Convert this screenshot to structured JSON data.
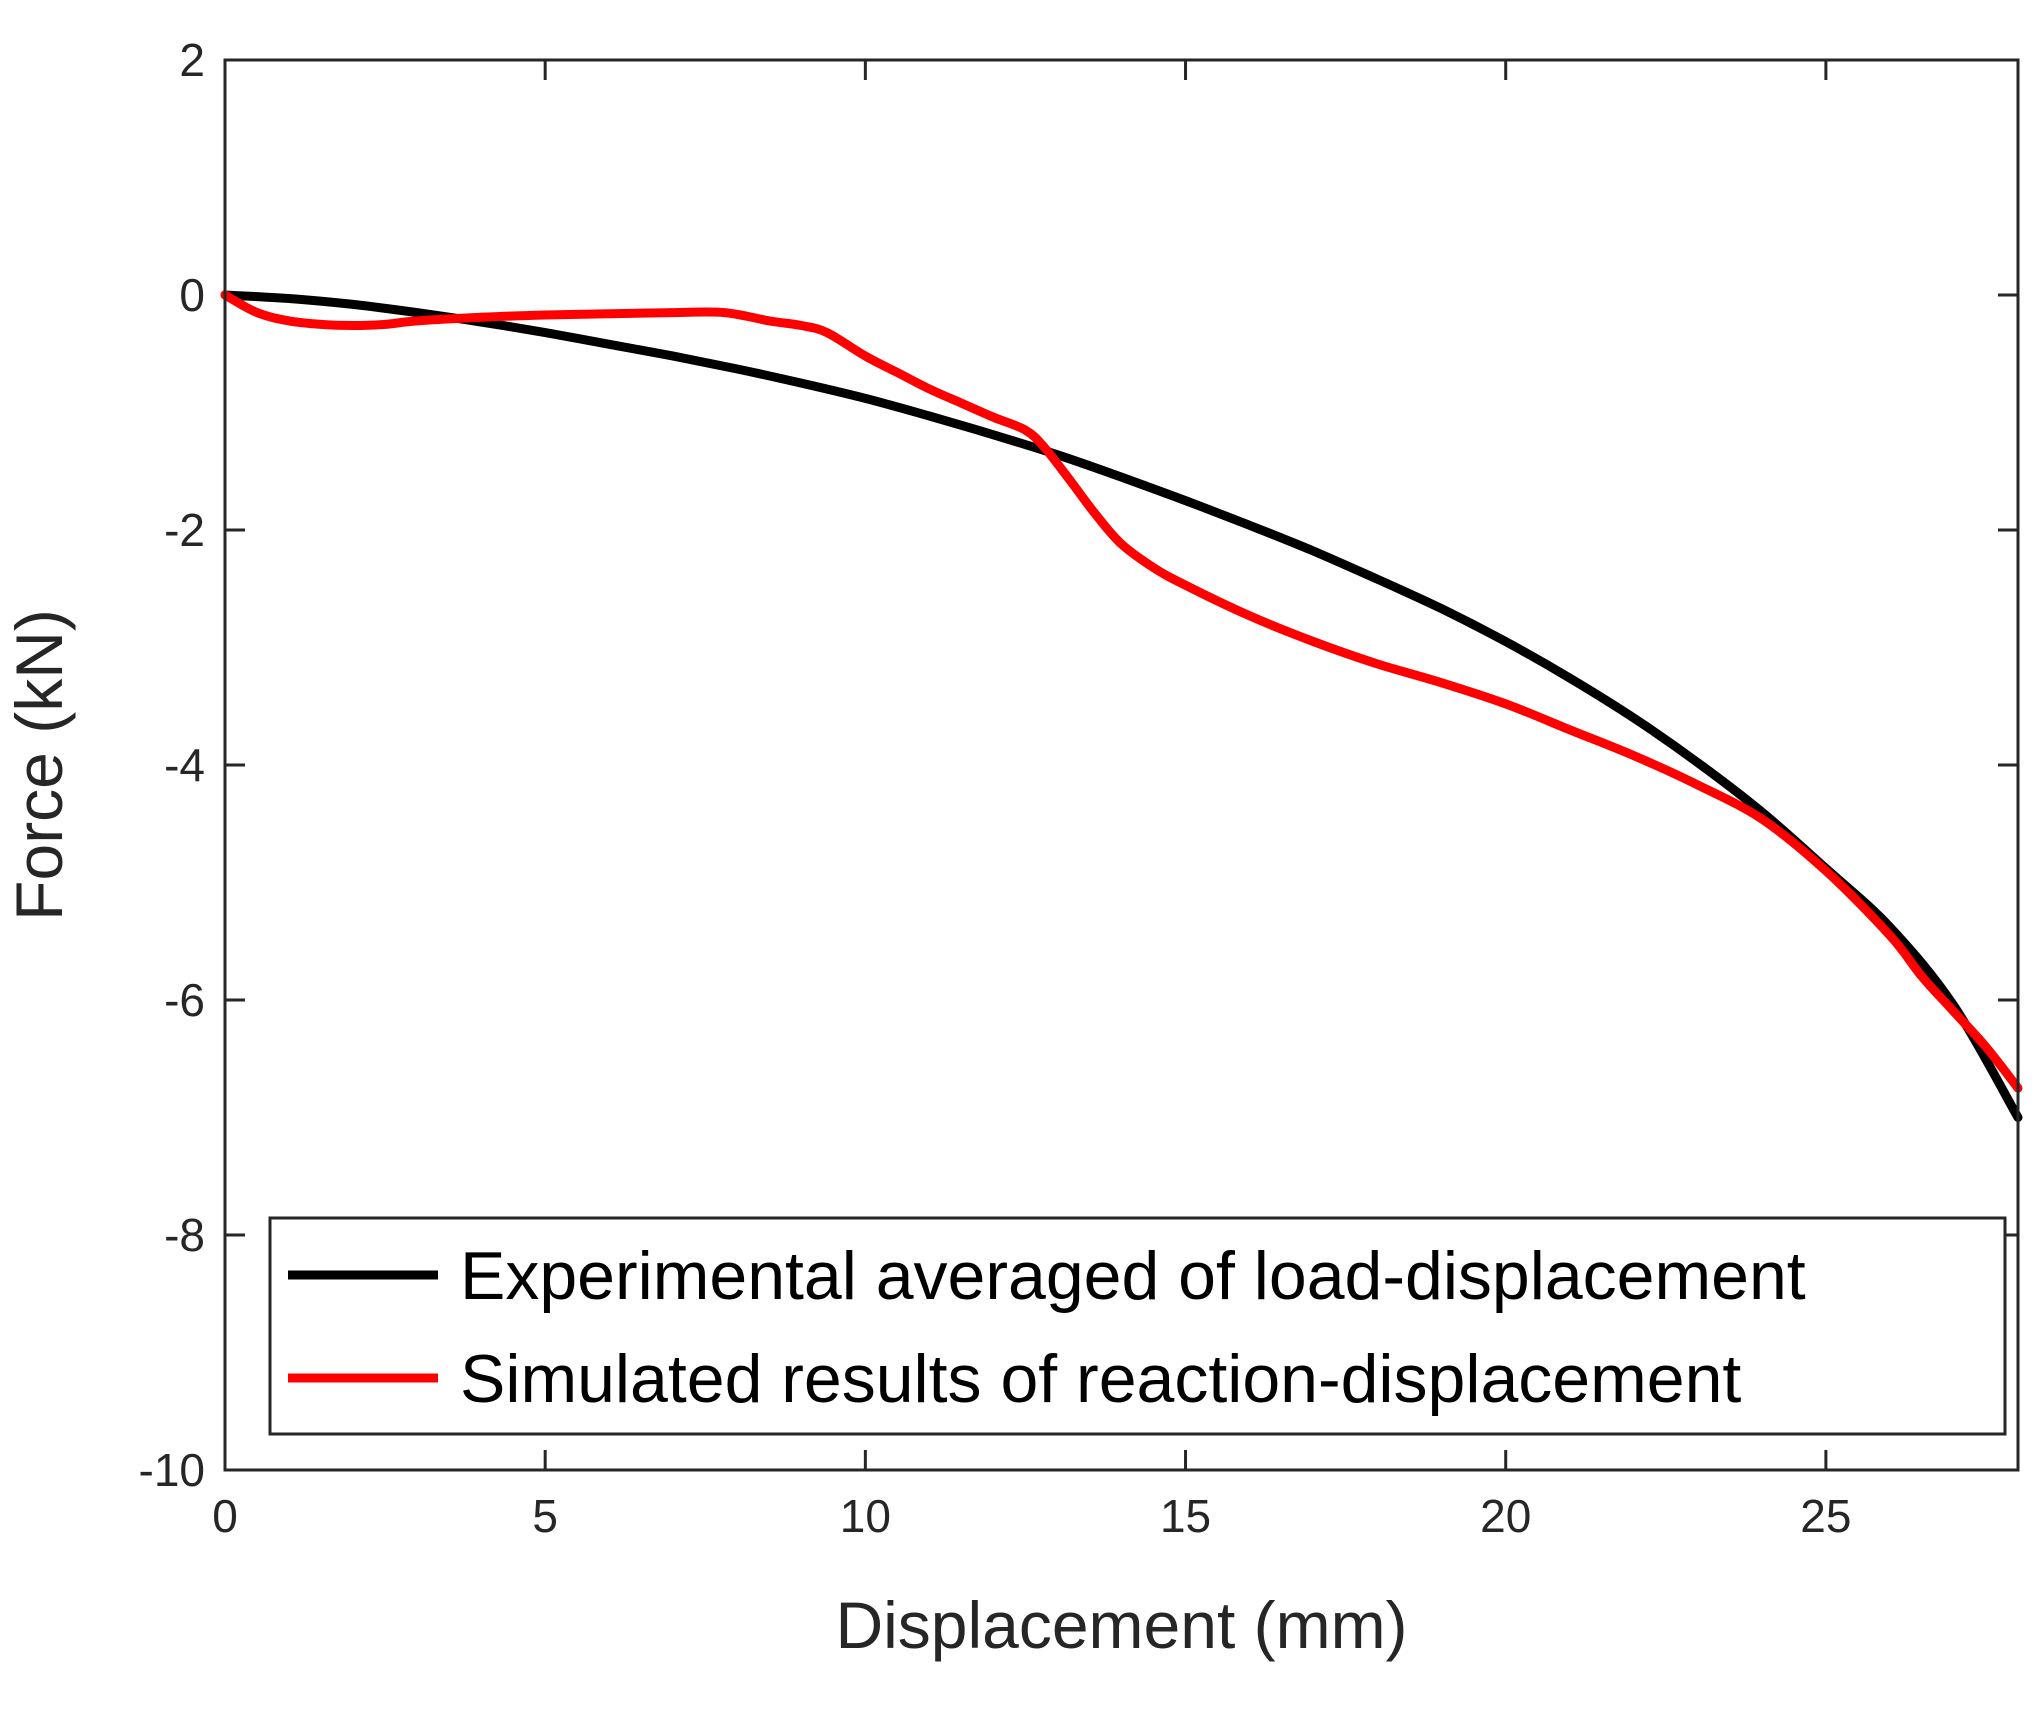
{
  "chart_data": {
    "type": "line",
    "title": "",
    "xlabel": "Displacement (mm)",
    "ylabel": "Force (kN)",
    "xlim": [
      0,
      28
    ],
    "ylim": [
      -10,
      2
    ],
    "xticks": [
      0,
      5,
      10,
      15,
      20,
      25
    ],
    "yticks": [
      2,
      0,
      -2,
      -4,
      -6,
      -8,
      -10
    ],
    "grid": false,
    "legend_position": "bottom",
    "series": [
      {
        "name": "Experimental averaged of load-displacement",
        "color": "#000000",
        "x": [
          0,
          1,
          2,
          3,
          4,
          5,
          6,
          7,
          8,
          9,
          10,
          11,
          12,
          13,
          14,
          15,
          16,
          17,
          18,
          19,
          20,
          21,
          22,
          23,
          24,
          25,
          26,
          27,
          28
        ],
        "y": [
          0,
          -0.03,
          -0.08,
          -0.15,
          -0.23,
          -0.32,
          -0.42,
          -0.52,
          -0.63,
          -0.75,
          -0.88,
          -1.03,
          -1.19,
          -1.36,
          -1.55,
          -1.75,
          -1.96,
          -2.18,
          -2.42,
          -2.67,
          -2.95,
          -3.26,
          -3.6,
          -3.98,
          -4.4,
          -4.88,
          -5.38,
          -6.05,
          -7.0
        ]
      },
      {
        "name": "Simulated results of reaction-displacement",
        "color": "#ff0000",
        "x": [
          0,
          0.5,
          1,
          1.5,
          2,
          2.5,
          3,
          4,
          5,
          6,
          7,
          7.8,
          8.5,
          9,
          9.4,
          10,
          10.5,
          11,
          11.5,
          12,
          12.5,
          12.8,
          13.2,
          13.6,
          14,
          14.5,
          15,
          16,
          17,
          18,
          19,
          20,
          21,
          22,
          23,
          24,
          25,
          26,
          26.5,
          27,
          27.5,
          28
        ],
        "y": [
          0,
          -0.15,
          -0.22,
          -0.25,
          -0.26,
          -0.25,
          -0.22,
          -0.19,
          -0.17,
          -0.16,
          -0.15,
          -0.15,
          -0.22,
          -0.26,
          -0.32,
          -0.52,
          -0.66,
          -0.8,
          -0.92,
          -1.04,
          -1.15,
          -1.3,
          -1.58,
          -1.87,
          -2.12,
          -2.32,
          -2.47,
          -2.73,
          -2.95,
          -3.14,
          -3.3,
          -3.48,
          -3.7,
          -3.92,
          -4.17,
          -4.46,
          -4.9,
          -5.45,
          -5.8,
          -6.1,
          -6.4,
          -6.75
        ]
      }
    ]
  }
}
